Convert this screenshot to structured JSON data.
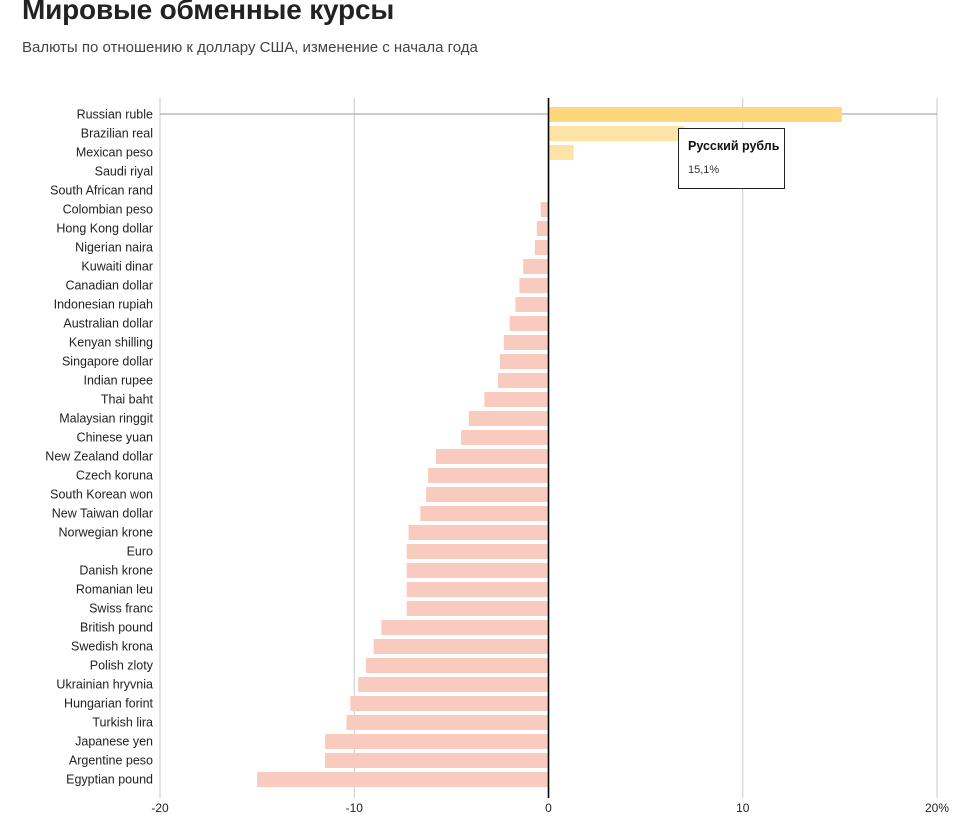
{
  "header": {
    "title": "Мировые обменные курсы",
    "subtitle": "Валюты по отношению к доллару США, изменение с начала года"
  },
  "tooltip": {
    "title": "Русский рубль",
    "value": "15,1%"
  },
  "colors": {
    "positive": "#fdd77a",
    "positive_light": "#fde3a6",
    "negative": "#f9cbbf",
    "grid": "#c8c8c8",
    "zero_line": "#000000",
    "baseline": "#9a9a9a"
  },
  "chart_data": {
    "type": "bar",
    "orientation": "horizontal",
    "title": "Мировые обменные курсы",
    "subtitle": "Валюты по отношению к доллару США, изменение с начала года",
    "xlim": [
      -20,
      20
    ],
    "xticks": [
      -20,
      -10,
      0,
      10,
      20
    ],
    "xtick_labels": [
      "-20",
      "-10",
      "0",
      "10",
      "20%"
    ],
    "grid": true,
    "categories": [
      "Russian ruble",
      "Brazilian real",
      "Mexican peso",
      "Saudi riyal",
      "South African rand",
      "Colombian peso",
      "Hong Kong dollar",
      "Nigerian naira",
      "Kuwaiti dinar",
      "Canadian dollar",
      "Indonesian rupiah",
      "Australian dollar",
      "Kenyan shilling",
      "Singapore dollar",
      "Indian rupee",
      "Thai baht",
      "Malaysian ringgit",
      "Chinese yuan",
      "New Zealand dollar",
      "Czech koruna",
      "South Korean won",
      "New Taiwan dollar",
      "Norwegian krone",
      "Euro",
      "Danish krone",
      "Romanian leu",
      "Swiss franc",
      "British pound",
      "Swedish krona",
      "Polish zloty",
      "Ukrainian hryvnia",
      "Hungarian forint",
      "Turkish lira",
      "Japanese yen",
      "Argentine peso",
      "Egyptian pound"
    ],
    "values": [
      15.1,
      7.0,
      1.3,
      0.0,
      0.0,
      -0.4,
      -0.6,
      -0.7,
      -1.3,
      -1.5,
      -1.7,
      -2.0,
      -2.3,
      -2.5,
      -2.6,
      -3.3,
      -4.1,
      -4.5,
      -5.8,
      -6.2,
      -6.3,
      -6.6,
      -7.2,
      -7.3,
      -7.3,
      -7.3,
      -7.3,
      -8.6,
      -9.0,
      -9.4,
      -9.8,
      -10.2,
      -10.4,
      -11.5,
      -11.5,
      -15.0
    ],
    "highlight": "Russian ruble"
  }
}
